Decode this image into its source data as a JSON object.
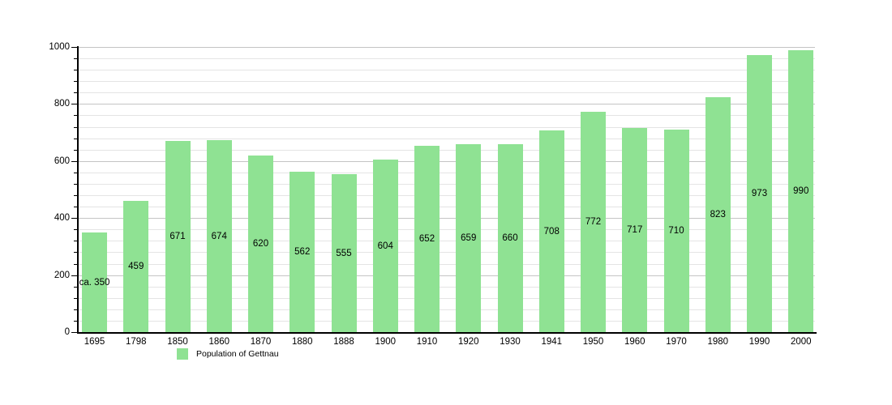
{
  "chart_data": {
    "type": "bar",
    "title": "",
    "categories": [
      "1695",
      "1798",
      "1850",
      "1860",
      "1870",
      "1880",
      "1888",
      "1900",
      "1910",
      "1920",
      "1930",
      "1941",
      "1950",
      "1960",
      "1970",
      "1980",
      "1990",
      "2000"
    ],
    "values": [
      350,
      459,
      671,
      674,
      620,
      562,
      555,
      604,
      652,
      659,
      660,
      708,
      772,
      717,
      710,
      823,
      973,
      990
    ],
    "bar_labels": [
      "ca. 350",
      "459",
      "671",
      "674",
      "620",
      "562",
      "555",
      "604",
      "652",
      "659",
      "660",
      "708",
      "772",
      "717",
      "710",
      "823",
      "973",
      "990"
    ],
    "xlabel": "",
    "ylabel": "",
    "ylim": [
      0,
      1000
    ],
    "y_major_ticks": [
      0,
      200,
      400,
      600,
      800,
      1000
    ],
    "y_minor_step": 40,
    "grid": true,
    "legend": {
      "label": "Population of Gettnau",
      "position": "bottom-left"
    },
    "colors": {
      "bar_fill": "#8fe293",
      "grid_major": "#c4c4c4",
      "grid_minor": "#e4e4e4",
      "axis": "#000000",
      "text": "#000000",
      "background": "#ffffff"
    }
  }
}
